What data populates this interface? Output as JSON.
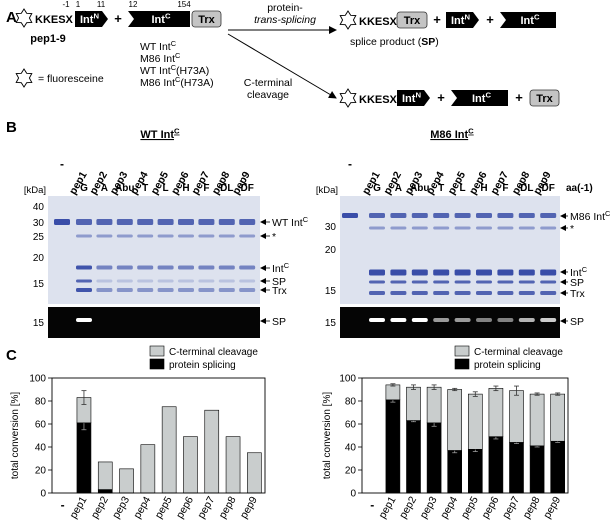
{
  "panel_a": {
    "letter": "A",
    "prefix": "KKESX",
    "int_n": {
      "base": "Int",
      "sup": "N"
    },
    "int_n_positions": [
      "-1",
      "1",
      "11"
    ],
    "peptide_name": "pep1-9",
    "plus": "+",
    "int_c": {
      "base": "Int",
      "sup": "C"
    },
    "int_c_positions": [
      "12",
      "154"
    ],
    "trx": "Trx",
    "variants": [
      {
        "base": "WT Int",
        "sup": "C"
      },
      {
        "base": "M86 Int",
        "sup": "C"
      },
      {
        "base": "WT Int",
        "sup": "C",
        "suffix": "(H73A)"
      },
      {
        "base": "M86 Int",
        "sup": "C",
        "suffix": "(H73A)"
      }
    ],
    "star_legend": "= fluoresceine",
    "splicing_arrow": [
      "protein-",
      "trans-splicing"
    ],
    "cleavage_arrow": [
      "C-terminal",
      "cleavage"
    ],
    "splice_product": [
      "splice product (",
      "SP",
      ")"
    ]
  },
  "panel_b": {
    "letter": "B",
    "aa_label": "aa(-1)",
    "kda_unit": "[kDa]",
    "lanes": [
      "-",
      "pep1",
      "pep2",
      "pep3",
      "pep4",
      "pep5",
      "pep6",
      "pep7",
      "pep8",
      "pep9"
    ],
    "aa": [
      "G",
      "A",
      "Abu",
      "T",
      "L",
      "H",
      "F",
      "DL",
      "DF"
    ],
    "gels": [
      {
        "title": {
          "base": "WT Int",
          "sup": "C"
        },
        "markers": [
          "40",
          "30",
          "25",
          "20",
          "15"
        ],
        "fluor_marker": "15",
        "band_labels": [
          {
            "base": "WT Int",
            "sup": "C"
          },
          "*",
          {
            "base": "Int",
            "sup": "C"
          },
          "SP",
          "Trx"
        ],
        "fluor_label": "SP"
      },
      {
        "title": {
          "base": "M86 Int",
          "sup": "C"
        },
        "markers": [
          "30",
          "20",
          "15"
        ],
        "fluor_marker": "15",
        "band_labels": [
          {
            "base": "M86 Int",
            "sup": "C"
          },
          "*",
          {
            "base": "Int",
            "sup": "C"
          },
          "SP",
          "Trx"
        ],
        "fluor_label": "SP"
      }
    ]
  },
  "panel_c": {
    "letter": "C"
  },
  "chart_data": [
    {
      "type": "bar",
      "stacked": true,
      "ylabel": "total conversion [%]",
      "categories": [
        "-",
        "pep1",
        "pep2",
        "pep3",
        "pep4",
        "pep5",
        "pep6",
        "pep7",
        "pep8",
        "pep9"
      ],
      "ylim": [
        0,
        100
      ],
      "yticks": [
        0,
        20,
        40,
        60,
        80,
        100
      ],
      "legend": "top",
      "series": [
        {
          "name": "protein splicing",
          "color": "#000000",
          "values": [
            null,
            61,
            3,
            0,
            0,
            0,
            0,
            0,
            0,
            0
          ],
          "errors": [
            null,
            6,
            null,
            null,
            null,
            null,
            null,
            null,
            null,
            null
          ]
        },
        {
          "name": "C-terminal cleavage",
          "color": "#c9cdcd",
          "values": [
            null,
            22,
            24,
            21,
            42,
            75,
            49,
            72,
            49,
            35
          ],
          "errors": [
            null,
            6,
            null,
            null,
            null,
            null,
            null,
            null,
            null,
            null
          ]
        }
      ]
    },
    {
      "type": "bar",
      "stacked": true,
      "ylabel": "total conversion [%]",
      "categories": [
        "-",
        "pep1",
        "pep2",
        "pep3",
        "pep4",
        "pep5",
        "pep6",
        "pep7",
        "pep8",
        "pep9"
      ],
      "ylim": [
        0,
        100
      ],
      "yticks": [
        0,
        20,
        40,
        60,
        80,
        100
      ],
      "legend": "top",
      "series": [
        {
          "name": "protein splicing",
          "color": "#000000",
          "values": [
            null,
            81,
            63,
            61,
            37,
            38,
            49,
            44,
            41,
            45
          ],
          "errors": [
            null,
            2,
            1,
            3,
            2,
            2,
            2,
            1,
            1,
            1
          ]
        },
        {
          "name": "C-terminal cleavage",
          "color": "#c9cdcd",
          "values": [
            null,
            13,
            29,
            31,
            53,
            48,
            42,
            45,
            45,
            41
          ],
          "errors": [
            null,
            1,
            2,
            2,
            1,
            2,
            2,
            4,
            1,
            1
          ]
        }
      ]
    }
  ]
}
